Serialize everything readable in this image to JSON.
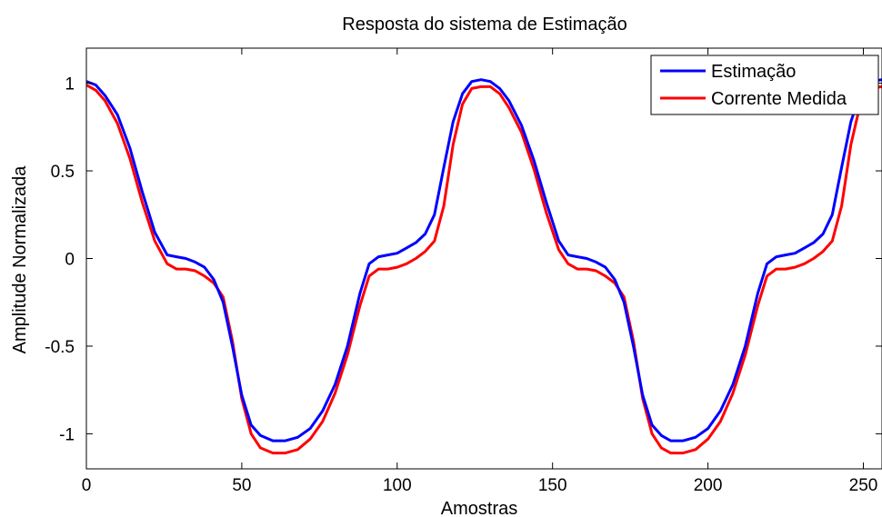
{
  "chart_data": {
    "type": "line",
    "title": "Resposta do sistema de Estimação",
    "xlabel": "Amostras",
    "ylabel": "Amplitude Normalizada",
    "xlim": [
      0,
      256
    ],
    "ylim": [
      -1.2,
      1.2
    ],
    "xticks": [
      0,
      50,
      100,
      150,
      200,
      250
    ],
    "yticks": [
      1,
      0.5,
      0,
      -0.5,
      -1
    ],
    "ytick_labels": [
      "1",
      "0.5",
      "0",
      "-0.5",
      "-1"
    ],
    "grid": false,
    "legend_position": "top-right",
    "series": [
      {
        "name": "Estimação",
        "color": "#0000ff",
        "x": [
          0,
          3,
          6,
          10,
          14,
          18,
          22,
          26,
          29,
          32,
          35,
          38,
          41,
          44,
          47,
          50,
          53,
          56,
          60,
          64,
          68,
          72,
          76,
          80,
          84,
          88,
          91,
          94,
          97,
          100,
          103,
          106,
          109,
          112,
          115,
          118,
          121,
          124,
          127,
          130,
          133,
          136,
          140,
          144,
          148,
          152,
          155,
          158,
          161,
          164,
          167,
          170,
          173,
          176,
          179,
          182,
          185,
          188,
          192,
          196,
          200,
          204,
          208,
          212,
          216,
          219,
          222,
          225,
          228,
          231,
          234,
          237,
          240,
          243,
          246,
          249,
          252,
          256
        ],
        "y": [
          1.01,
          0.99,
          0.93,
          0.82,
          0.63,
          0.38,
          0.15,
          0.02,
          0.01,
          0.0,
          -0.02,
          -0.05,
          -0.12,
          -0.25,
          -0.5,
          -0.78,
          -0.95,
          -1.01,
          -1.04,
          -1.04,
          -1.02,
          -0.97,
          -0.87,
          -0.72,
          -0.5,
          -0.2,
          -0.03,
          0.01,
          0.02,
          0.03,
          0.06,
          0.09,
          0.14,
          0.25,
          0.52,
          0.78,
          0.94,
          1.01,
          1.02,
          1.01,
          0.97,
          0.9,
          0.76,
          0.56,
          0.32,
          0.1,
          0.02,
          0.01,
          0.0,
          -0.02,
          -0.05,
          -0.12,
          -0.25,
          -0.5,
          -0.78,
          -0.95,
          -1.01,
          -1.04,
          -1.04,
          -1.02,
          -0.97,
          -0.87,
          -0.72,
          -0.5,
          -0.2,
          -0.03,
          0.01,
          0.02,
          0.03,
          0.06,
          0.09,
          0.14,
          0.25,
          0.52,
          0.78,
          0.94,
          1.01,
          1.02
        ]
      },
      {
        "name": "Corrente Medida",
        "color": "#ff0000",
        "x": [
          0,
          3,
          6,
          10,
          14,
          18,
          22,
          26,
          29,
          32,
          35,
          38,
          41,
          44,
          47,
          50,
          53,
          56,
          60,
          64,
          68,
          72,
          76,
          80,
          84,
          88,
          91,
          94,
          97,
          100,
          103,
          106,
          109,
          112,
          115,
          118,
          121,
          124,
          127,
          130,
          133,
          136,
          140,
          144,
          148,
          152,
          155,
          158,
          161,
          164,
          167,
          170,
          173,
          176,
          179,
          182,
          185,
          188,
          192,
          196,
          200,
          204,
          208,
          212,
          216,
          219,
          222,
          225,
          228,
          231,
          234,
          237,
          240,
          243,
          246,
          249,
          252,
          256
        ],
        "y": [
          0.99,
          0.96,
          0.9,
          0.77,
          0.57,
          0.32,
          0.1,
          -0.03,
          -0.06,
          -0.06,
          -0.07,
          -0.1,
          -0.14,
          -0.22,
          -0.47,
          -0.8,
          -1.0,
          -1.08,
          -1.11,
          -1.11,
          -1.09,
          -1.03,
          -0.93,
          -0.77,
          -0.55,
          -0.27,
          -0.1,
          -0.06,
          -0.06,
          -0.05,
          -0.03,
          0.0,
          0.04,
          0.1,
          0.3,
          0.65,
          0.88,
          0.97,
          0.98,
          0.98,
          0.94,
          0.86,
          0.72,
          0.51,
          0.26,
          0.05,
          -0.03,
          -0.06,
          -0.06,
          -0.07,
          -0.1,
          -0.14,
          -0.22,
          -0.47,
          -0.8,
          -1.0,
          -1.08,
          -1.11,
          -1.11,
          -1.09,
          -1.03,
          -0.93,
          -0.77,
          -0.55,
          -0.27,
          -0.1,
          -0.06,
          -0.06,
          -0.05,
          -0.03,
          0.0,
          0.04,
          0.1,
          0.3,
          0.65,
          0.88,
          0.97,
          0.98
        ]
      }
    ]
  }
}
